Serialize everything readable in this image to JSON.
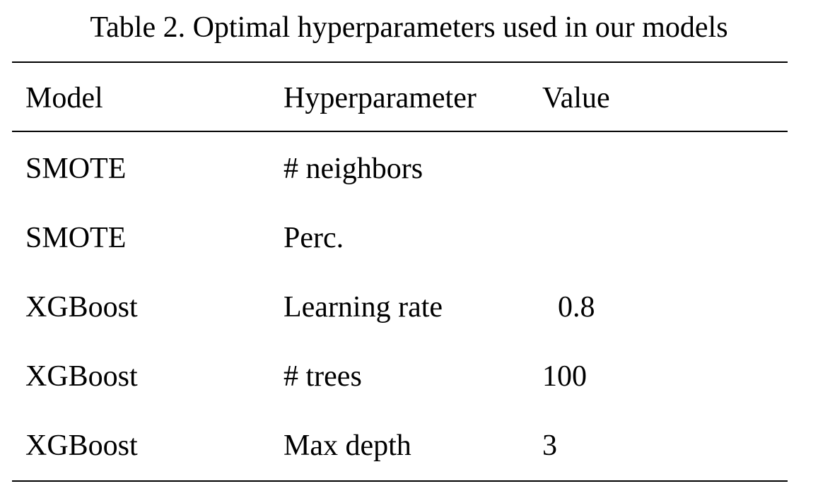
{
  "caption": "Table 2. Optimal hyperparameters used in our models",
  "table": {
    "headers": {
      "model": "Model",
      "hyperparameter": "Hyperparameter",
      "value": "Value"
    },
    "rows": [
      {
        "model": "SMOTE",
        "hyperparameter": "# neighbors",
        "value": ""
      },
      {
        "model": "SMOTE",
        "hyperparameter": "Perc.",
        "value": ""
      },
      {
        "model": "XGBoost",
        "hyperparameter": "Learning rate",
        "value": "0.8"
      },
      {
        "model": "XGBoost",
        "hyperparameter": "# trees",
        "value": "100"
      },
      {
        "model": "XGBoost",
        "hyperparameter": "Max depth",
        "value": "3"
      }
    ]
  }
}
